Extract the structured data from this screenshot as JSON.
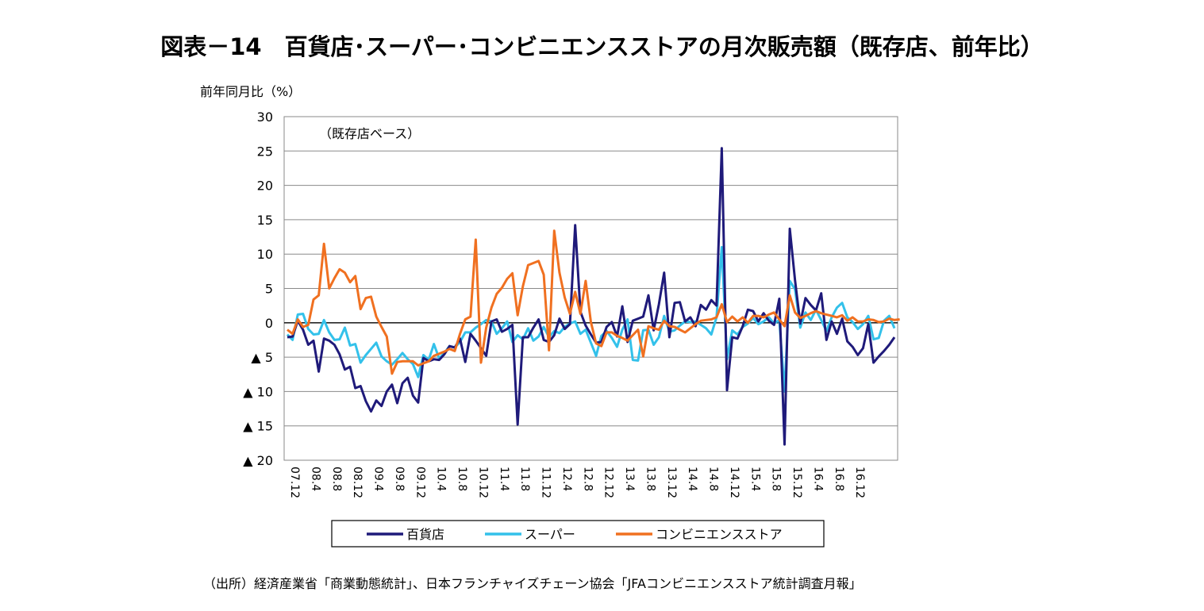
{
  "chart_data": {
    "type": "line",
    "title": "図表－14　百貨店･スーパー･コンビニエンスストアの月次販売額（既存店、前年比）",
    "ylabel": "前年同月比（%）",
    "annotation": "（既存店ベース）",
    "ylim": [
      -20,
      30
    ],
    "y_ticks": [
      30,
      25,
      20,
      15,
      10,
      5,
      0,
      -5,
      -10,
      -15,
      -20
    ],
    "y_tick_labels": [
      "30",
      "25",
      "20",
      "15",
      "10",
      "5",
      "0",
      "▲ 5",
      "▲ 10",
      "▲ 15",
      "▲ 20"
    ],
    "x_tick_labels": [
      "07.12",
      "08.4",
      "08.8",
      "08.12",
      "09.4",
      "09.8",
      "09.12",
      "10.4",
      "10.8",
      "10.12",
      "11.4",
      "11.8",
      "11.12",
      "12.4",
      "12.8",
      "12.12",
      "13.4",
      "13.8",
      "13.12",
      "14.4",
      "14.8",
      "14.12",
      "15.4",
      "15.8",
      "15.12",
      "16.4",
      "16.8",
      "16.12"
    ],
    "grid": true,
    "legend_position": "bottom",
    "series": [
      {
        "name": "百貨店",
        "color": "#1f1a7a",
        "values": [
          -2.1,
          -2.0,
          0.3,
          -1.0,
          -3.2,
          -2.6,
          -7.1,
          -2.3,
          -2.6,
          -3.2,
          -4.6,
          -6.8,
          -6.4,
          -9.5,
          -9.2,
          -11.4,
          -12.9,
          -11.3,
          -12.1,
          -10.0,
          -9.0,
          -11.7,
          -8.8,
          -8.0,
          -10.6,
          -11.6,
          -5.1,
          -5.6,
          -5.3,
          -5.4,
          -4.6,
          -3.4,
          -3.6,
          -2.3,
          -5.7,
          -1.6,
          -2.6,
          -3.7,
          -4.8,
          0.2,
          0.5,
          -1.3,
          -0.9,
          -0.3,
          -14.8,
          -2.1,
          -2.1,
          -0.7,
          0.5,
          -2.5,
          -2.8,
          -1.8,
          0.6,
          -0.9,
          -0.2,
          14.2,
          1.6,
          -0.4,
          -1.7,
          -2.9,
          -2.8,
          -0.6,
          0.1,
          -2.0,
          2.4,
          -2.8,
          0.3,
          0.6,
          0.9,
          4.0,
          -1.1,
          2.7,
          7.3,
          -2.1,
          2.9,
          3.0,
          0.2,
          0.8,
          -0.5,
          2.6,
          1.9,
          3.3,
          2.5,
          25.4,
          -9.8,
          -2.1,
          -2.3,
          -0.5,
          1.9,
          1.7,
          0.2,
          1.4,
          0.3,
          -0.3,
          3.5,
          -17.7,
          13.7,
          6.2,
          -0.1,
          3.6,
          2.6,
          1.8,
          4.3,
          -2.5,
          0.2,
          -1.6,
          0.6,
          -2.7,
          -3.5,
          -4.7,
          -3.7,
          -0.2,
          -5.8,
          -4.9,
          -4.1,
          -3.2,
          -2.1
        ]
      },
      {
        "name": "スーパー",
        "color": "#33c1ea",
        "values": [
          -1.7,
          -2.5,
          1.2,
          1.3,
          -0.9,
          -1.7,
          -1.6,
          0.4,
          -1.4,
          -2.5,
          -2.4,
          -0.7,
          -3.3,
          -3.1,
          -5.8,
          -4.7,
          -3.8,
          -2.9,
          -4.9,
          -5.6,
          -6.1,
          -5.3,
          -4.4,
          -5.3,
          -6.0,
          -7.9,
          -4.7,
          -5.4,
          -3.1,
          -5.2,
          -4.4,
          -3.4,
          -3.6,
          -2.8,
          -1.4,
          -1.4,
          -0.7,
          -0.2,
          0.4,
          0.2,
          -1.6,
          -0.8,
          0.2,
          -2.8,
          -1.8,
          -2.4,
          -0.8,
          -2.6,
          -2.0,
          -0.6,
          -2.1,
          -1.2,
          -1.5,
          -0.6,
          -0.1,
          0.2,
          -1.6,
          -1.0,
          -2.9,
          -4.8,
          -1.9,
          -1.2,
          -2.2,
          -3.5,
          -1.0,
          0.5,
          -5.4,
          -5.5,
          -1.1,
          -1.0,
          -3.2,
          -2.1,
          1.0,
          -1.3,
          -1.1,
          -0.4,
          0.2,
          0.1,
          0.2,
          -0.3,
          -0.8,
          -1.7,
          0.8,
          11.0,
          -5.3,
          -1.1,
          -1.7,
          -0.6,
          -0.1,
          0.7,
          -0.2,
          0.2,
          0.8,
          -0.1,
          0.4,
          -10.0,
          6.1,
          4.9,
          -0.7,
          1.5,
          0.4,
          1.9,
          0.4,
          -1.2,
          0.8,
          2.2,
          2.9,
          0.8,
          0.1,
          -0.9,
          -0.2,
          1.0,
          -2.4,
          -2.2,
          0.3,
          1.0,
          -0.8
        ]
      },
      {
        "name": "コンビニエンスストア",
        "color": "#f07020",
        "values": [
          -1.0,
          -1.6,
          0.5,
          -0.6,
          -0.3,
          3.4,
          4.0,
          11.5,
          5.0,
          6.5,
          7.8,
          7.3,
          5.9,
          6.8,
          2.0,
          3.6,
          3.8,
          0.9,
          -0.6,
          -2.0,
          -7.4,
          -5.7,
          -5.6,
          -5.6,
          -5.6,
          -6.2,
          -5.9,
          -5.6,
          -4.8,
          -4.5,
          -4.2,
          -3.8,
          -4.1,
          -1.6,
          0.5,
          0.9,
          12.1,
          -5.8,
          -0.7,
          2.2,
          4.2,
          5.1,
          6.4,
          7.2,
          1.1,
          5.3,
          8.4,
          8.7,
          9.0,
          7.0,
          -4.0,
          13.4,
          7.3,
          3.7,
          1.3,
          4.5,
          1.3,
          6.1,
          0.1,
          -3.0,
          -3.4,
          -1.4,
          -1.4,
          -1.9,
          -2.2,
          -2.6,
          -1.8,
          -1.0,
          -4.9,
          -0.5,
          -0.8,
          -1.0,
          0.3,
          -0.5,
          -0.6,
          -1.0,
          -1.4,
          -0.8,
          -0.2,
          0.3,
          0.4,
          0.5,
          0.8,
          2.7,
          0.1,
          0.9,
          0.2,
          0.8,
          0.0,
          1.0,
          1.0,
          0.8,
          1.2,
          1.5,
          0.5,
          -0.5,
          4.0,
          1.5,
          0.7,
          1.0,
          1.4,
          1.7,
          1.4,
          1.2,
          1.0,
          0.8,
          1.1,
          0.3,
          0.8,
          0.2,
          0.2,
          0.5,
          0.4,
          0.1,
          0.2,
          0.6,
          0.4,
          0.5
        ]
      }
    ]
  },
  "source": "（出所）経済産業省「商業動態統計」、日本フランチャイズチェーン協会「JFAコンビニエンスストア統計調査月報」"
}
